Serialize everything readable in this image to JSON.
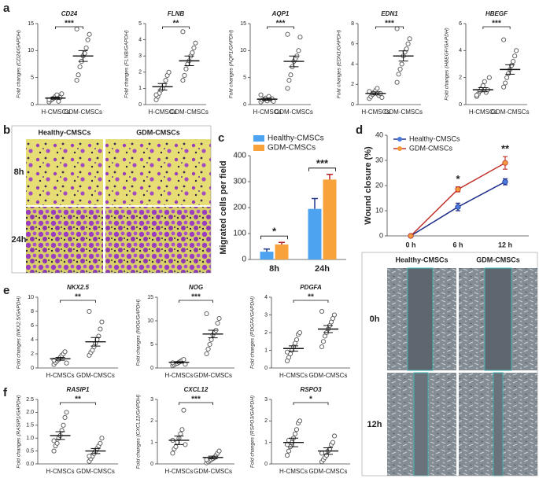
{
  "panel_labels": [
    "a",
    "b",
    "c",
    "d",
    "e",
    "f"
  ],
  "migration_panel": {
    "columns": [
      "Healthy-CMSCs",
      "GDM-CMSCs"
    ],
    "rows": [
      "8h",
      "24h"
    ]
  },
  "wound_panel": {
    "columns": [
      "Healthy-CMSCs",
      "GDM-CMSCs"
    ],
    "rows": [
      "0h",
      "12h"
    ]
  },
  "chart_data": [
    {
      "type": "dotplot",
      "title": "CD24",
      "ylabel": "Fold changes (CD24/GAPDH)",
      "categories": [
        "H-CMSCs",
        "GDM-CMSCs"
      ],
      "color": "#555555",
      "values": [
        [
          0.5,
          0.8,
          1.0,
          1.2,
          1.5,
          1.8,
          0.6,
          1.3,
          2.0,
          0.9
        ],
        [
          4.5,
          5.5,
          7.0,
          8.0,
          9.0,
          9.5,
          10.5,
          12.0,
          13.0,
          14.0
        ]
      ],
      "means": [
        1.2,
        9.0
      ],
      "errors": [
        0.2,
        1.0
      ],
      "significance": "***",
      "ylim": [
        0,
        15
      ],
      "yticks": [
        0,
        5,
        10,
        15
      ]
    },
    {
      "type": "dotplot",
      "title": "FLNB",
      "ylabel": "Fold changes (FLNB/GAPDH)",
      "categories": [
        "H-CMSCs",
        "GDM-CMSCs"
      ],
      "color": "#555555",
      "values": [
        [
          0.3,
          0.5,
          0.7,
          0.9,
          1.0,
          1.2,
          1.5,
          1.8,
          2.0,
          0.6
        ],
        [
          1.5,
          1.8,
          2.2,
          2.5,
          2.7,
          3.0,
          3.2,
          3.5,
          3.8,
          4.5
        ]
      ],
      "means": [
        1.1,
        2.7
      ],
      "errors": [
        0.2,
        0.3
      ],
      "significance": "**",
      "ylim": [
        0,
        5
      ],
      "yticks": [
        0,
        1,
        2,
        3,
        4,
        5
      ]
    },
    {
      "type": "dotplot",
      "title": "AQP1",
      "ylabel": "Fold changes (AQP1/GAPDH)",
      "categories": [
        "H-CMSCs",
        "GDM-CMSCs"
      ],
      "color": "#555555",
      "values": [
        [
          0.5,
          0.8,
          1.0,
          1.2,
          0.7,
          1.5,
          0.9,
          1.1,
          0.6,
          1.8
        ],
        [
          3.0,
          4.5,
          5.5,
          7.0,
          8.0,
          8.5,
          9.0,
          10.0,
          12.5,
          13.0
        ]
      ],
      "means": [
        1.0,
        8.0
      ],
      "errors": [
        0.2,
        1.0
      ],
      "significance": "***",
      "ylim": [
        0,
        15
      ],
      "yticks": [
        0,
        5,
        10,
        15
      ]
    },
    {
      "type": "dotplot",
      "title": "EDN1",
      "ylabel": "Fold changes (EDN1/GAPDH)",
      "categories": [
        "H-CMSCs",
        "GDM-CMSCs"
      ],
      "color": "#555555",
      "values": [
        [
          0.6,
          0.8,
          1.0,
          1.2,
          1.4,
          1.6,
          0.9,
          1.1,
          0.7,
          1.3
        ],
        [
          2.2,
          3.0,
          3.5,
          4.0,
          4.8,
          5.2,
          5.5,
          6.0,
          6.5,
          7.5
        ]
      ],
      "means": [
        1.1,
        4.8
      ],
      "errors": [
        0.15,
        0.5
      ],
      "significance": "***",
      "ylim": [
        0,
        8
      ],
      "yticks": [
        0,
        2,
        4,
        6,
        8
      ]
    },
    {
      "type": "dotplot",
      "title": "HBEGF",
      "ylabel": "Fold changes (HBEGF/GAPDH)",
      "categories": [
        "H-CMSCs",
        "GDM-CMSCs"
      ],
      "color": "#555555",
      "values": [
        [
          0.6,
          0.8,
          1.0,
          1.2,
          1.4,
          1.7,
          0.9,
          1.1,
          2.0,
          0.7
        ],
        [
          1.3,
          1.6,
          2.0,
          2.3,
          2.6,
          2.9,
          3.2,
          3.6,
          4.0,
          4.8
        ]
      ],
      "means": [
        1.1,
        2.6
      ],
      "errors": [
        0.15,
        0.35
      ],
      "significance": "***",
      "ylim": [
        0,
        6
      ],
      "yticks": [
        0,
        2,
        4,
        6
      ]
    },
    {
      "type": "bar",
      "ylabel": "Migrated cells per field",
      "categories": [
        "8h",
        "24h"
      ],
      "series": [
        {
          "name": "Healthy-CMSCs",
          "color": "#4da3f0",
          "error_color": "#1f3a8a",
          "values": [
            30,
            195
          ],
          "errors": [
            10,
            40
          ]
        },
        {
          "name": "GDM-CMSCs",
          "color": "#f7a23b",
          "error_color": "#b8232b",
          "values": [
            58,
            308
          ],
          "errors": [
            8,
            20
          ]
        }
      ],
      "significance": [
        "*",
        "***"
      ],
      "ylim": [
        0,
        400
      ],
      "yticks": [
        0,
        100,
        200,
        300,
        400
      ]
    },
    {
      "type": "line",
      "ylabel": "Wound closure (%)",
      "categories": [
        "0 h",
        "6 h",
        "12 h"
      ],
      "series": [
        {
          "name": "Healthy-CMSCs",
          "color": "#4a7bdc",
          "line_color": "#1f2f8a",
          "values": [
            0,
            11.5,
            21.5
          ],
          "errors": [
            0,
            1.5,
            1.2
          ]
        },
        {
          "name": "GDM-CMSCs",
          "color": "#f39a3a",
          "line_color": "#c0302b",
          "values": [
            0,
            18.5,
            29
          ],
          "errors": [
            0,
            1.0,
            2.5
          ]
        }
      ],
      "significance": [
        null,
        "*",
        "**"
      ],
      "ylim": [
        0,
        40
      ],
      "yticks": [
        0,
        10,
        20,
        30,
        40
      ]
    },
    {
      "type": "dotplot",
      "title": "NKX2.5",
      "ylabel": "Fold changes (NKX2.5/GAPDH)",
      "categories": [
        "H-CMSCs",
        "GDM-CMSCs"
      ],
      "color": "#555555",
      "values": [
        [
          0.5,
          0.8,
          1.0,
          1.2,
          1.5,
          1.8,
          2.0,
          2.3,
          0.7,
          1.1
        ],
        [
          1.8,
          2.2,
          2.5,
          3.0,
          3.5,
          4.0,
          4.5,
          5.5,
          6.5,
          8.0
        ]
      ],
      "means": [
        1.3,
        3.7
      ],
      "errors": [
        0.2,
        0.6
      ],
      "significance": "**",
      "ylim": [
        0,
        10
      ],
      "yticks": [
        0,
        2,
        4,
        6,
        8,
        10
      ]
    },
    {
      "type": "dotplot",
      "title": "NOG",
      "ylabel": "Fold changes (NOG/GAPDH)",
      "categories": [
        "H-CMSCs",
        "GDM-CMSCs"
      ],
      "color": "#555555",
      "values": [
        [
          0.5,
          0.7,
          0.9,
          1.0,
          1.2,
          1.4,
          1.6,
          1.8,
          0.8,
          1.1
        ],
        [
          3.0,
          4.0,
          5.0,
          6.0,
          7.0,
          7.5,
          8.0,
          9.5,
          10.5,
          11.5
        ]
      ],
      "means": [
        1.2,
        7.2
      ],
      "errors": [
        0.15,
        0.8
      ],
      "significance": "***",
      "ylim": [
        0,
        15
      ],
      "yticks": [
        0,
        5,
        10,
        15
      ]
    },
    {
      "type": "dotplot",
      "title": "PDGFA",
      "ylabel": "Fold changes (PDGFA/GAPDH)",
      "categories": [
        "H-CMSCs",
        "GDM-CMSCs"
      ],
      "color": "#555555",
      "values": [
        [
          0.4,
          0.6,
          0.8,
          1.0,
          1.2,
          1.4,
          1.6,
          1.9,
          2.0,
          0.9
        ],
        [
          1.2,
          1.5,
          1.8,
          2.0,
          2.2,
          2.4,
          2.6,
          2.8,
          3.0,
          3.2
        ]
      ],
      "means": [
        1.1,
        2.2
      ],
      "errors": [
        0.15,
        0.2
      ],
      "significance": "**",
      "ylim": [
        0,
        4
      ],
      "yticks": [
        0,
        1,
        2,
        3,
        4
      ]
    },
    {
      "type": "dotplot",
      "title": "RASIP1",
      "ylabel": "Fold changes (RASIP1/GAPDH)",
      "categories": [
        "H-CMSCs",
        "GDM-CMSCs"
      ],
      "color": "#555555",
      "values": [
        [
          0.5,
          0.7,
          0.8,
          1.0,
          1.1,
          1.3,
          1.5,
          1.8,
          2.0,
          0.9
        ],
        [
          0.1,
          0.2,
          0.3,
          0.4,
          0.5,
          0.6,
          0.7,
          0.8,
          1.0,
          0.3
        ]
      ],
      "means": [
        1.1,
        0.5
      ],
      "errors": [
        0.15,
        0.1
      ],
      "significance": "**",
      "ylim": [
        0,
        2.5
      ],
      "yticks": [
        {
          "value": 0,
          "label": "0.0"
        },
        0.5,
        {
          "value": 1,
          "label": "1.0"
        },
        1.5,
        {
          "value": 2,
          "label": "2.0"
        },
        2.5
      ]
    },
    {
      "type": "dotplot",
      "title": "CXCL12",
      "ylabel": "Fold changes (CXCL12/GAPDH)",
      "categories": [
        "H-CMSCs",
        "GDM-CMSCs"
      ],
      "color": "#555555",
      "values": [
        [
          0.5,
          0.7,
          0.8,
          1.0,
          1.2,
          1.4,
          1.6,
          2.5,
          0.9,
          1.1
        ],
        [
          0.05,
          0.1,
          0.15,
          0.2,
          0.25,
          0.3,
          0.4,
          0.5,
          0.6,
          0.2
        ]
      ],
      "means": [
        1.1,
        0.3
      ],
      "errors": [
        0.2,
        0.06
      ],
      "significance": "***",
      "ylim": [
        0,
        3
      ],
      "yticks": [
        0,
        1,
        2,
        3
      ]
    },
    {
      "type": "dotplot",
      "title": "RSPO3",
      "ylabel": "Fold changes (RSPO3/GAPDH)",
      "categories": [
        "H-CMSCs",
        "GDM-CMSCs"
      ],
      "color": "#555555",
      "values": [
        [
          0.4,
          0.6,
          0.8,
          1.0,
          1.2,
          1.4,
          1.6,
          1.9,
          2.0,
          0.9,
          1.1
        ],
        [
          0.1,
          0.2,
          0.3,
          0.4,
          0.6,
          0.7,
          0.9,
          1.0,
          1.3,
          0.5
        ]
      ],
      "means": [
        1.0,
        0.6
      ],
      "errors": [
        0.2,
        0.15
      ],
      "significance": "*",
      "ylim": [
        0,
        3
      ],
      "yticks": [
        0,
        1,
        2,
        3
      ]
    }
  ]
}
